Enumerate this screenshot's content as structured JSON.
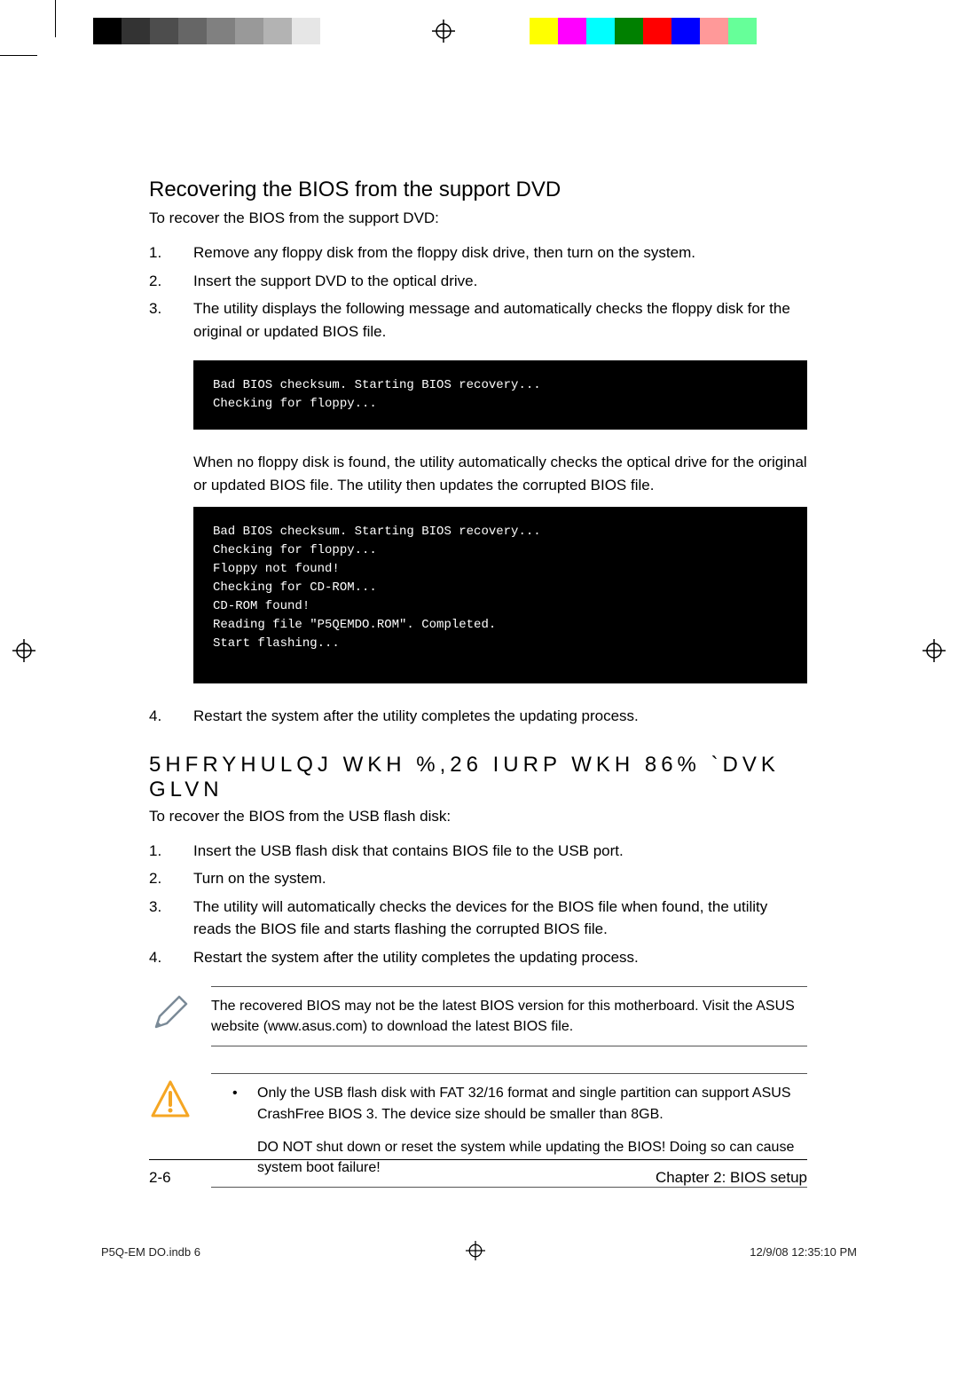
{
  "colorbars": {
    "left": [
      "#000000",
      "#333333",
      "#4d4d4d",
      "#666666",
      "#808080",
      "#999999",
      "#b3b3b3",
      "#e6e6e6"
    ],
    "right": [
      "#ffff00",
      "#ff00ff",
      "#00ffff",
      "#008000",
      "#ff0000",
      "#0000ff",
      "#ff9999",
      "#66ff99"
    ]
  },
  "section1": {
    "title": "Recovering the BIOS from the support DVD",
    "intro": "To recover the BIOS from the support DVD:",
    "steps": [
      "Remove any floppy disk from the floppy disk drive, then turn on the system.",
      "Insert the support DVD to the optical drive.",
      "The utility displays the following message and automatically checks the floppy disk for the original or updated BIOS file."
    ],
    "code1": "Bad BIOS checksum. Starting BIOS recovery...\nChecking for floppy...",
    "mid": "When no floppy disk is found, the utility automatically checks the optical drive for the original or updated BIOS file. The utility then updates the corrupted BIOS file.",
    "code2": "Bad BIOS checksum. Starting BIOS recovery...\nChecking for floppy...\nFloppy not found!\nChecking for CD-ROM...\nCD-ROM found!\nReading file \"P5QEMDO.ROM\". Completed.\nStart flashing...",
    "step4": "Restart the system after the utility completes the updating process."
  },
  "section2": {
    "title": "5HFRYHULQJ WKH %,26 IURP WKH 86% `DVK GLVN",
    "intro": "To recover the BIOS from the USB flash disk:",
    "steps": [
      "Insert the USB flash disk that contains BIOS file to the USB port.",
      "Turn on the system.",
      "The utility will automatically checks the devices for the BIOS file when found, the utility reads the BIOS file and starts flashing the corrupted BIOS file.",
      "Restart the system after the utility completes the updating process."
    ]
  },
  "note": "The recovered BIOS may not be the latest BIOS version for this motherboard. Visit the ASUS website (www.asus.com) to download the latest BIOS file.",
  "warning": {
    "items": [
      "Only the USB flash disk with FAT 32/16 format and single partition can support ASUS CrashFree BIOS 3. The device size should be smaller than 8GB.",
      "DO NOT shut down or reset the system while updating the BIOS! Doing so can cause system boot failure!"
    ]
  },
  "footer": {
    "page": "2-6",
    "chapter": "Chapter 2: BIOS setup"
  },
  "meta": {
    "file": "P5Q-EM DO.indb   6",
    "stamp": "12/9/08   12:35:10 PM"
  }
}
